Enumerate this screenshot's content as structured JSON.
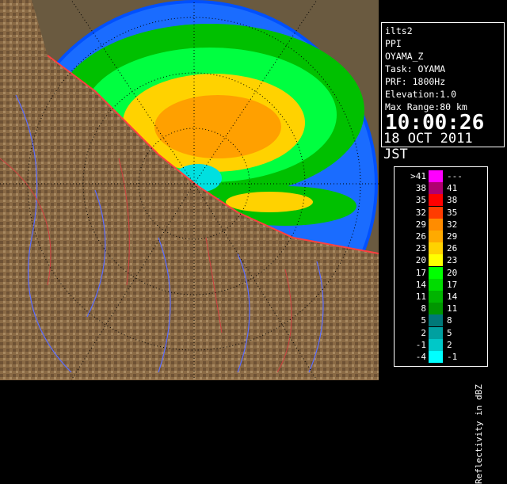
{
  "info": {
    "lines": [
      "ilts2",
      "PPI",
      "OYAMA_Z",
      "Task: OYAMA",
      "PRF: 1800Hz",
      "Elevation:1.0",
      "Max Range:80 km"
    ],
    "time": "10:00:26",
    "date": "18 OCT 2011 JST"
  },
  "legend": {
    "title": "Reflectivity in dBZ",
    "rows": [
      {
        "left": ">41",
        "right": "---",
        "color": "#ff00ff"
      },
      {
        "left": "38",
        "right": "41",
        "color": "#b0006f"
      },
      {
        "left": "35",
        "right": "38",
        "color": "#ff0000"
      },
      {
        "left": "32",
        "right": "35",
        "color": "#ff3c00"
      },
      {
        "left": "29",
        "right": "32",
        "color": "#ff8c00"
      },
      {
        "left": "26",
        "right": "29",
        "color": "#ffaa00"
      },
      {
        "left": "23",
        "right": "26",
        "color": "#ffd200"
      },
      {
        "left": "20",
        "right": "23",
        "color": "#ffff00"
      },
      {
        "left": "17",
        "right": "20",
        "color": "#00ff00"
      },
      {
        "left": "14",
        "right": "17",
        "color": "#00dc00"
      },
      {
        "left": "11",
        "right": "14",
        "color": "#00b400"
      },
      {
        "left": "8",
        "right": "11",
        "color": "#009600"
      },
      {
        "left": "5",
        "right": "8",
        "color": "#007878"
      },
      {
        "left": "2",
        "right": "5",
        "color": "#00a0a0"
      },
      {
        "left": "-1",
        "right": "2",
        "color": "#00c8c8"
      },
      {
        "left": "-4",
        "right": "-1",
        "color": "#00ffff"
      }
    ]
  }
}
